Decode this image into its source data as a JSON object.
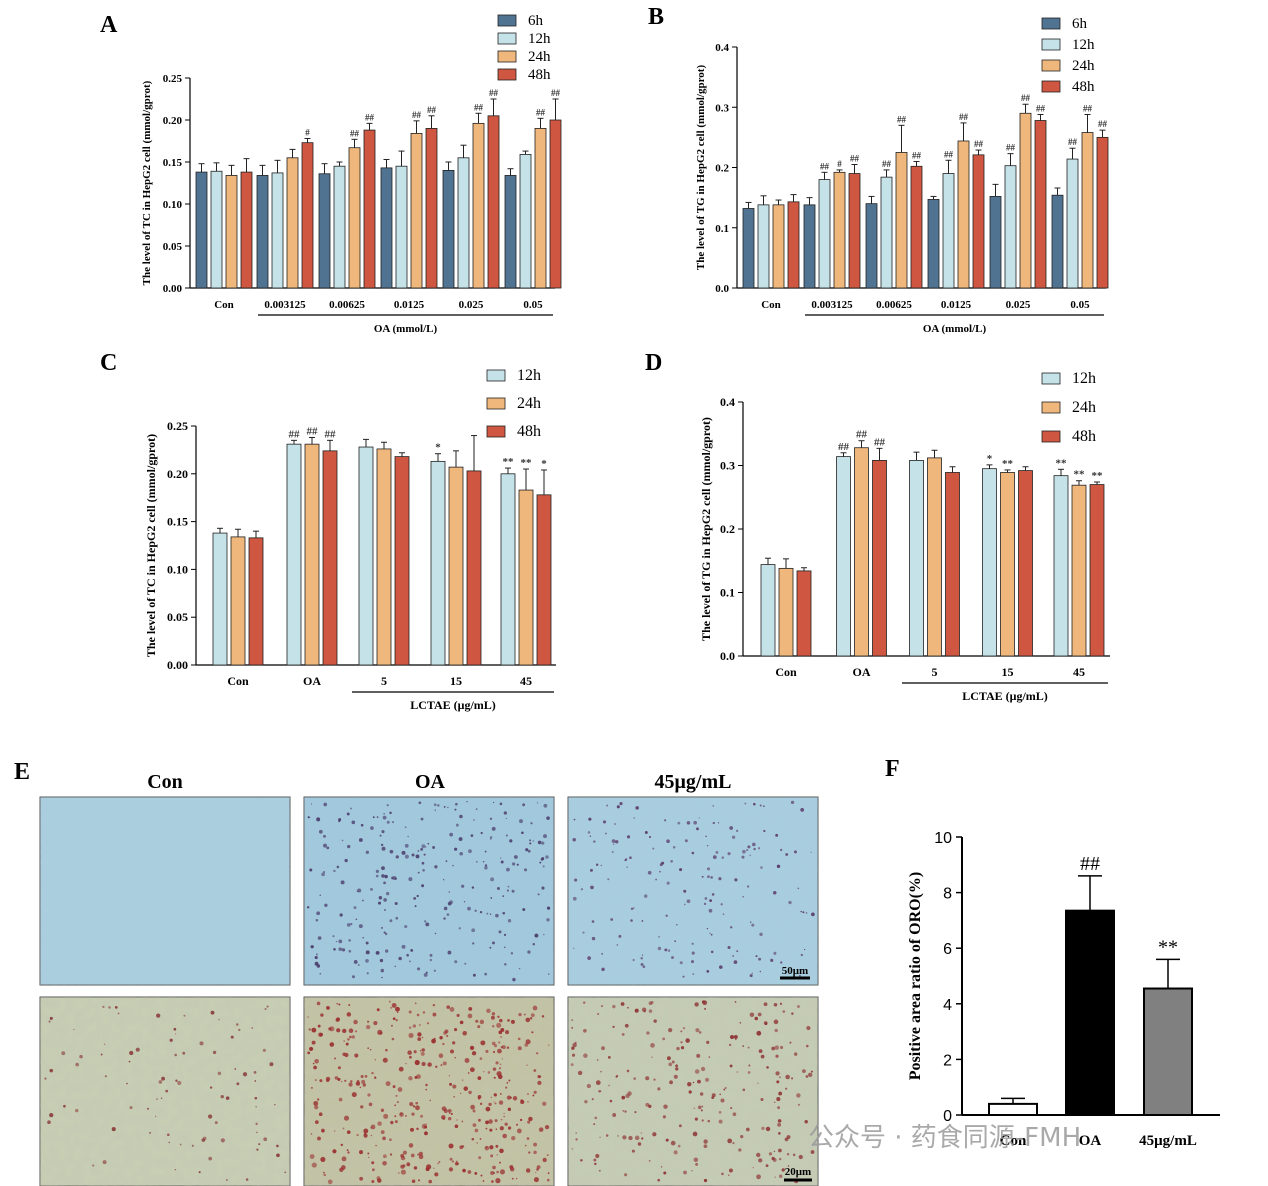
{
  "colors": {
    "6h": "#4f7391",
    "12h": "#c4e2e8",
    "24h": "#f0b77d",
    "48h": "#cf5641",
    "F_con": "#ffffff",
    "F_oa": "#000000",
    "F_lctae": "#808080"
  },
  "watermark": "公众号 · 药食同源-FMH",
  "chart_data": [
    {
      "id": "A",
      "panel_label": "A",
      "type": "bar",
      "ylabel": "The level of TC in HepG2 cell (mmol/gprot)",
      "group_label": "OA (mmol/L)",
      "categories": [
        "Con",
        "0.003125",
        "0.00625",
        "0.0125",
        "0.025",
        "0.05"
      ],
      "ylim": [
        0,
        0.25
      ],
      "yticks": [
        0.0,
        0.05,
        0.1,
        0.15,
        0.2,
        0.25
      ],
      "tick_decimals": 2,
      "grouped_from": 1,
      "series": [
        {
          "name": "6h",
          "color_key": "6h",
          "values": [
            0.138,
            0.134,
            0.136,
            0.143,
            0.14,
            0.134
          ],
          "errors": [
            0.01,
            0.012,
            0.012,
            0.01,
            0.01,
            0.008
          ],
          "marks": [
            "",
            "",
            "",
            "",
            "",
            ""
          ]
        },
        {
          "name": "12h",
          "color_key": "12h",
          "values": [
            0.139,
            0.137,
            0.145,
            0.145,
            0.155,
            0.159
          ],
          "errors": [
            0.01,
            0.015,
            0.005,
            0.018,
            0.015,
            0.004
          ],
          "marks": [
            "",
            "",
            "",
            "",
            "",
            ""
          ]
        },
        {
          "name": "24h",
          "color_key": "24h",
          "values": [
            0.134,
            0.155,
            0.167,
            0.184,
            0.196,
            0.19
          ],
          "errors": [
            0.012,
            0.01,
            0.01,
            0.015,
            0.012,
            0.012
          ],
          "marks": [
            "",
            "",
            "##",
            "##",
            "##",
            "##"
          ]
        },
        {
          "name": "48h",
          "color_key": "48h",
          "values": [
            0.138,
            0.173,
            0.188,
            0.19,
            0.205,
            0.2
          ],
          "errors": [
            0.016,
            0.005,
            0.008,
            0.015,
            0.02,
            0.025
          ],
          "marks": [
            "",
            "#",
            "##",
            "##",
            "##",
            "##"
          ]
        }
      ],
      "legend": [
        "6h",
        "12h",
        "24h",
        "48h"
      ]
    },
    {
      "id": "B",
      "panel_label": "B",
      "type": "bar",
      "ylabel": "The level of TG in HepG2 cell (mmol/gprot)",
      "group_label": "OA (mmol/L)",
      "categories": [
        "Con",
        "0.003125",
        "0.00625",
        "0.0125",
        "0.025",
        "0.05"
      ],
      "ylim": [
        0,
        0.4
      ],
      "yticks": [
        0.0,
        0.1,
        0.2,
        0.3,
        0.4
      ],
      "tick_decimals": 1,
      "grouped_from": 1,
      "series": [
        {
          "name": "6h",
          "color_key": "6h",
          "values": [
            0.132,
            0.138,
            0.14,
            0.147,
            0.152,
            0.154
          ],
          "errors": [
            0.01,
            0.012,
            0.012,
            0.005,
            0.02,
            0.012
          ],
          "marks": [
            "",
            "",
            "",
            "",
            "",
            ""
          ]
        },
        {
          "name": "12h",
          "color_key": "12h",
          "values": [
            0.138,
            0.18,
            0.184,
            0.19,
            0.203,
            0.214
          ],
          "errors": [
            0.015,
            0.012,
            0.012,
            0.022,
            0.02,
            0.018
          ],
          "marks": [
            "",
            "##",
            "##",
            "##",
            "##",
            "##"
          ]
        },
        {
          "name": "24h",
          "color_key": "24h",
          "values": [
            0.138,
            0.192,
            0.225,
            0.244,
            0.29,
            0.258
          ],
          "errors": [
            0.008,
            0.004,
            0.045,
            0.03,
            0.015,
            0.03
          ],
          "marks": [
            "",
            "#",
            "##",
            "##",
            "##",
            "##"
          ]
        },
        {
          "name": "48h",
          "color_key": "48h",
          "values": [
            0.143,
            0.19,
            0.202,
            0.221,
            0.278,
            0.25
          ],
          "errors": [
            0.012,
            0.015,
            0.008,
            0.008,
            0.01,
            0.012
          ],
          "marks": [
            "",
            "##",
            "##",
            "##",
            "##",
            "##"
          ]
        }
      ],
      "legend": [
        "6h",
        "12h",
        "24h",
        "48h"
      ]
    },
    {
      "id": "C",
      "panel_label": "C",
      "type": "bar",
      "ylabel": "The level of TC in HepG2 cell (mmol/gprot)",
      "group_label": "LCTAE (μg/mL)",
      "categories": [
        "Con",
        "OA",
        "5",
        "15",
        "45"
      ],
      "ylim": [
        0,
        0.25
      ],
      "yticks": [
        0.0,
        0.05,
        0.1,
        0.15,
        0.2,
        0.25
      ],
      "tick_decimals": 2,
      "grouped_from": 2,
      "series": [
        {
          "name": "12h",
          "color_key": "12h",
          "values": [
            0.138,
            0.231,
            0.228,
            0.213,
            0.2
          ],
          "errors": [
            0.005,
            0.004,
            0.008,
            0.008,
            0.006
          ],
          "marks": [
            "",
            "##",
            "",
            "*",
            "**"
          ]
        },
        {
          "name": "24h",
          "color_key": "24h",
          "values": [
            0.134,
            0.231,
            0.226,
            0.207,
            0.183
          ],
          "errors": [
            0.008,
            0.007,
            0.007,
            0.017,
            0.022
          ],
          "marks": [
            "",
            "##",
            "",
            "",
            "**"
          ]
        },
        {
          "name": "48h",
          "color_key": "48h",
          "values": [
            0.133,
            0.224,
            0.218,
            0.203,
            0.178
          ],
          "errors": [
            0.007,
            0.011,
            0.004,
            0.037,
            0.026
          ],
          "marks": [
            "",
            "##",
            "",
            "",
            "*"
          ]
        }
      ],
      "legend": [
        "12h",
        "24h",
        "48h"
      ]
    },
    {
      "id": "D",
      "panel_label": "D",
      "type": "bar",
      "ylabel": "The level of TG in HepG2 cell (mmol/gprot)",
      "group_label": "LCTAE (μg/mL)",
      "categories": [
        "Con",
        "OA",
        "5",
        "15",
        "45"
      ],
      "ylim": [
        0,
        0.4
      ],
      "yticks": [
        0.0,
        0.1,
        0.2,
        0.3,
        0.4
      ],
      "tick_decimals": 1,
      "grouped_from": 2,
      "series": [
        {
          "name": "12h",
          "color_key": "12h",
          "values": [
            0.144,
            0.314,
            0.308,
            0.295,
            0.284
          ],
          "errors": [
            0.01,
            0.006,
            0.013,
            0.006,
            0.01
          ],
          "marks": [
            "",
            "##",
            "",
            "*",
            "**"
          ]
        },
        {
          "name": "24h",
          "color_key": "24h",
          "values": [
            0.138,
            0.328,
            0.312,
            0.289,
            0.269
          ],
          "errors": [
            0.015,
            0.011,
            0.012,
            0.004,
            0.007
          ],
          "marks": [
            "",
            "##",
            "",
            "**",
            "**"
          ]
        },
        {
          "name": "48h",
          "color_key": "48h",
          "values": [
            0.134,
            0.308,
            0.289,
            0.292,
            0.27
          ],
          "errors": [
            0.005,
            0.019,
            0.009,
            0.006,
            0.004
          ],
          "marks": [
            "",
            "##",
            "",
            "",
            "**"
          ]
        }
      ],
      "legend": [
        "12h",
        "24h",
        "48h"
      ]
    },
    {
      "id": "F",
      "panel_label": "F",
      "type": "bar",
      "ylabel": "Positive area ratio of ORO(%)",
      "categories": [
        "Con",
        "OA",
        "45μg/mL"
      ],
      "ylim": [
        0,
        10
      ],
      "yticks": [
        0,
        2,
        4,
        6,
        8,
        10
      ],
      "tick_decimals": 0,
      "values": [
        0.4,
        7.35,
        4.55
      ],
      "errors": [
        0.2,
        1.25,
        1.05
      ],
      "marks": [
        "",
        "##",
        "**"
      ],
      "color_keys": [
        "F_con",
        "F_oa",
        "F_lctae"
      ]
    }
  ],
  "panel_E": {
    "panel_label": "E",
    "columns": [
      "Con",
      "OA",
      "45μg/mL"
    ],
    "scale_bars": [
      "50μm",
      "20μm"
    ]
  }
}
